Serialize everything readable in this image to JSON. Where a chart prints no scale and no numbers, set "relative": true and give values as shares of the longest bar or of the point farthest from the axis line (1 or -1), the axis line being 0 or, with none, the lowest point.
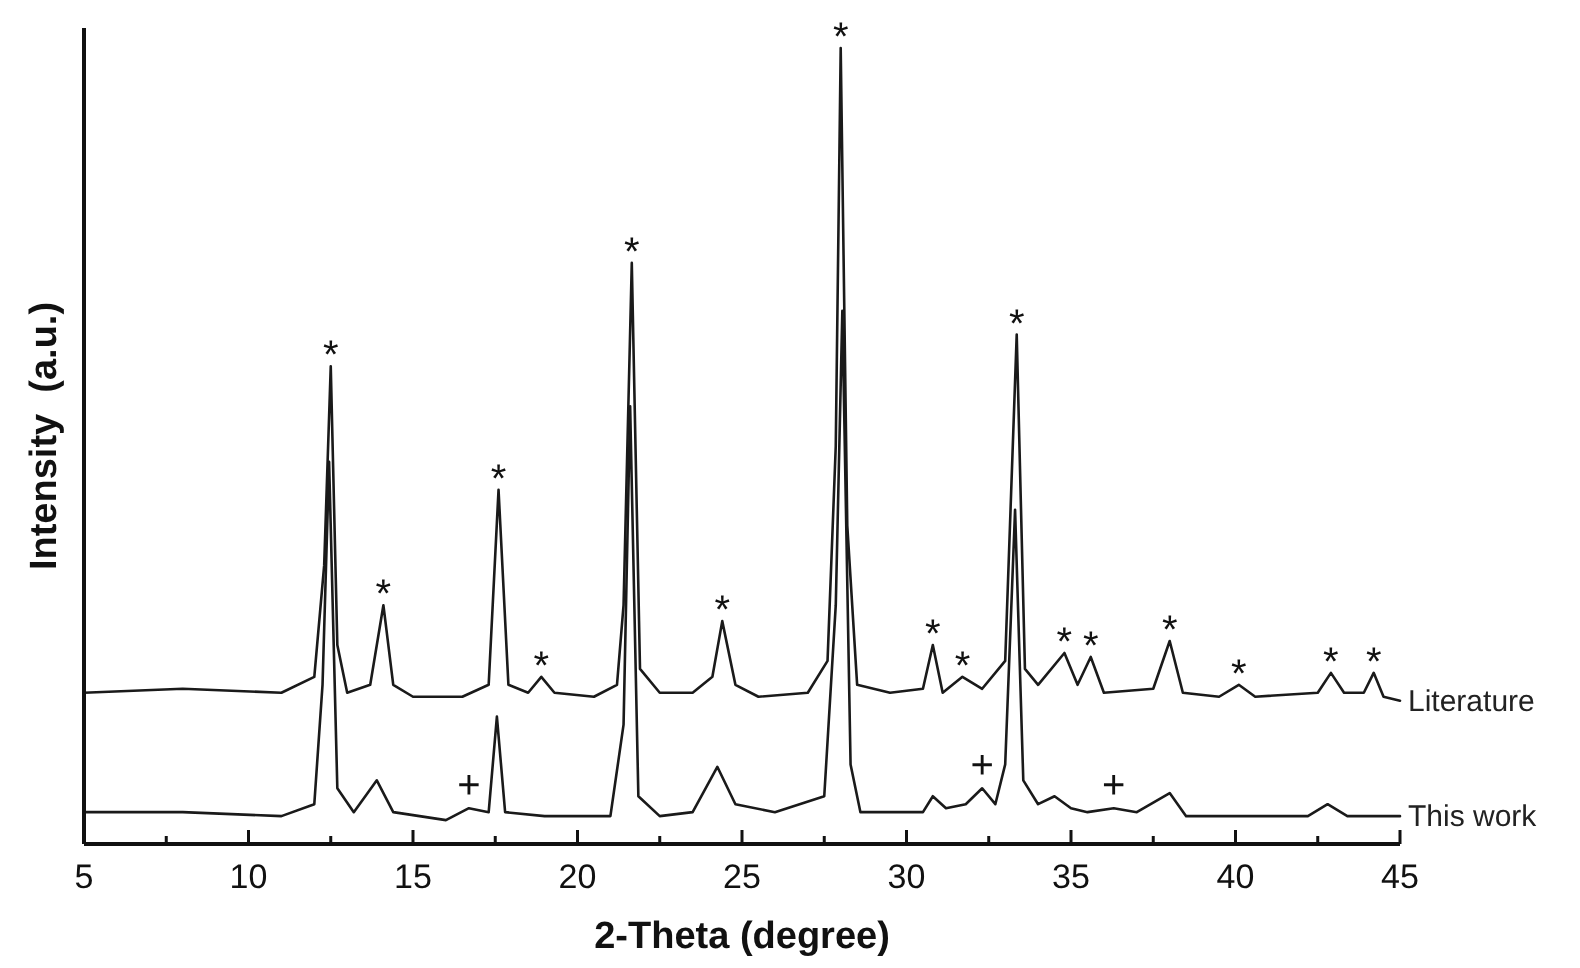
{
  "chart_data": {
    "type": "line",
    "relative": true,
    "xlabel": "2-Theta (degree)",
    "ylabel": "Intensity  (a.u.)",
    "xlim": [
      5,
      45
    ],
    "xticks": [
      5,
      {
        "value": 7.5,
        "label": null
      },
      10,
      {
        "value": 12.5,
        "label": null
      },
      15,
      {
        "value": 17.5,
        "label": null
      },
      20,
      {
        "value": 22.5,
        "label": null
      },
      25,
      {
        "value": 27.5,
        "label": null
      },
      30,
      {
        "value": 32.5,
        "label": null
      },
      35,
      {
        "value": 37.5,
        "label": null
      },
      40,
      {
        "value": 42.5,
        "label": null
      },
      45
    ],
    "series": [
      {
        "name": "Literature",
        "color": "#1a1a1a",
        "x": [
          5,
          8,
          11,
          12.0,
          12.3,
          12.5,
          12.7,
          13.0,
          13.7,
          14.1,
          14.4,
          15,
          16.5,
          17.3,
          17.6,
          17.9,
          18.5,
          18.9,
          19.3,
          20.5,
          21.2,
          21.4,
          21.65,
          21.9,
          22.5,
          23.5,
          24.1,
          24.4,
          24.8,
          25.5,
          27,
          27.6,
          27.85,
          28.0,
          28.2,
          28.5,
          29.5,
          30.5,
          30.8,
          31.1,
          31.7,
          32.3,
          33.0,
          33.35,
          33.6,
          34.0,
          34.8,
          35.2,
          35.6,
          36.0,
          37.5,
          38.0,
          38.4,
          39.5,
          40.1,
          40.6,
          42.5,
          42.9,
          43.3,
          43.9,
          44.2,
          44.5,
          45
        ],
        "values": [
          0.19,
          0.195,
          0.19,
          0.21,
          0.35,
          0.6,
          0.25,
          0.19,
          0.2,
          0.3,
          0.2,
          0.185,
          0.185,
          0.2,
          0.445,
          0.2,
          0.19,
          0.21,
          0.19,
          0.185,
          0.2,
          0.3,
          0.73,
          0.22,
          0.19,
          0.19,
          0.21,
          0.28,
          0.2,
          0.185,
          0.19,
          0.23,
          0.5,
          1.0,
          0.4,
          0.2,
          0.19,
          0.195,
          0.25,
          0.19,
          0.21,
          0.195,
          0.23,
          0.64,
          0.22,
          0.2,
          0.24,
          0.2,
          0.235,
          0.19,
          0.195,
          0.255,
          0.19,
          0.185,
          0.2,
          0.185,
          0.19,
          0.215,
          0.19,
          0.19,
          0.215,
          0.185,
          0.18
        ]
      },
      {
        "name": "This work",
        "color": "#1a1a1a",
        "x": [
          5,
          8,
          11,
          12.0,
          12.25,
          12.45,
          12.7,
          13.2,
          13.9,
          14.4,
          16,
          16.7,
          17.3,
          17.55,
          17.8,
          19,
          21,
          21.4,
          21.6,
          21.85,
          22.5,
          23.5,
          24.25,
          24.8,
          26,
          27.5,
          27.85,
          28.05,
          28.3,
          28.6,
          30.5,
          30.8,
          31.2,
          31.8,
          32.3,
          32.7,
          33.0,
          33.3,
          33.55,
          34.0,
          34.5,
          35.0,
          35.5,
          36.3,
          37,
          38.0,
          38.5,
          40,
          42.2,
          42.8,
          43.4,
          45
        ],
        "values": [
          0.04,
          0.04,
          0.035,
          0.05,
          0.2,
          0.48,
          0.07,
          0.04,
          0.08,
          0.04,
          0.03,
          0.045,
          0.04,
          0.16,
          0.04,
          0.035,
          0.035,
          0.15,
          0.55,
          0.06,
          0.035,
          0.04,
          0.097,
          0.05,
          0.04,
          0.06,
          0.3,
          0.67,
          0.1,
          0.04,
          0.04,
          0.06,
          0.045,
          0.05,
          0.07,
          0.05,
          0.1,
          0.42,
          0.08,
          0.05,
          0.06,
          0.045,
          0.04,
          0.045,
          0.04,
          0.064,
          0.035,
          0.035,
          0.035,
          0.05,
          0.035,
          0.035
        ]
      }
    ],
    "annotations": [
      {
        "text": "*",
        "x": 12.5,
        "y": 0.6
      },
      {
        "text": "*",
        "x": 14.1,
        "y": 0.3
      },
      {
        "text": "*",
        "x": 17.6,
        "y": 0.445
      },
      {
        "text": "*",
        "x": 18.9,
        "y": 0.21
      },
      {
        "text": "*",
        "x": 21.65,
        "y": 0.73
      },
      {
        "text": "*",
        "x": 24.4,
        "y": 0.28
      },
      {
        "text": "*",
        "x": 28.0,
        "y": 1.0
      },
      {
        "text": "*",
        "x": 30.8,
        "y": 0.25
      },
      {
        "text": "*",
        "x": 31.7,
        "y": 0.21
      },
      {
        "text": "*",
        "x": 33.35,
        "y": 0.64
      },
      {
        "text": "*",
        "x": 34.8,
        "y": 0.24
      },
      {
        "text": "*",
        "x": 35.6,
        "y": 0.235
      },
      {
        "text": "*",
        "x": 38.0,
        "y": 0.255
      },
      {
        "text": "*",
        "x": 40.1,
        "y": 0.2
      },
      {
        "text": "*",
        "x": 42.9,
        "y": 0.215
      },
      {
        "text": "*",
        "x": 44.2,
        "y": 0.215
      },
      {
        "text": "+",
        "x": 16.7,
        "y": 0.045
      },
      {
        "text": "+",
        "x": 32.3,
        "y": 0.07
      },
      {
        "text": "+",
        "x": 36.3,
        "y": 0.045
      }
    ]
  }
}
